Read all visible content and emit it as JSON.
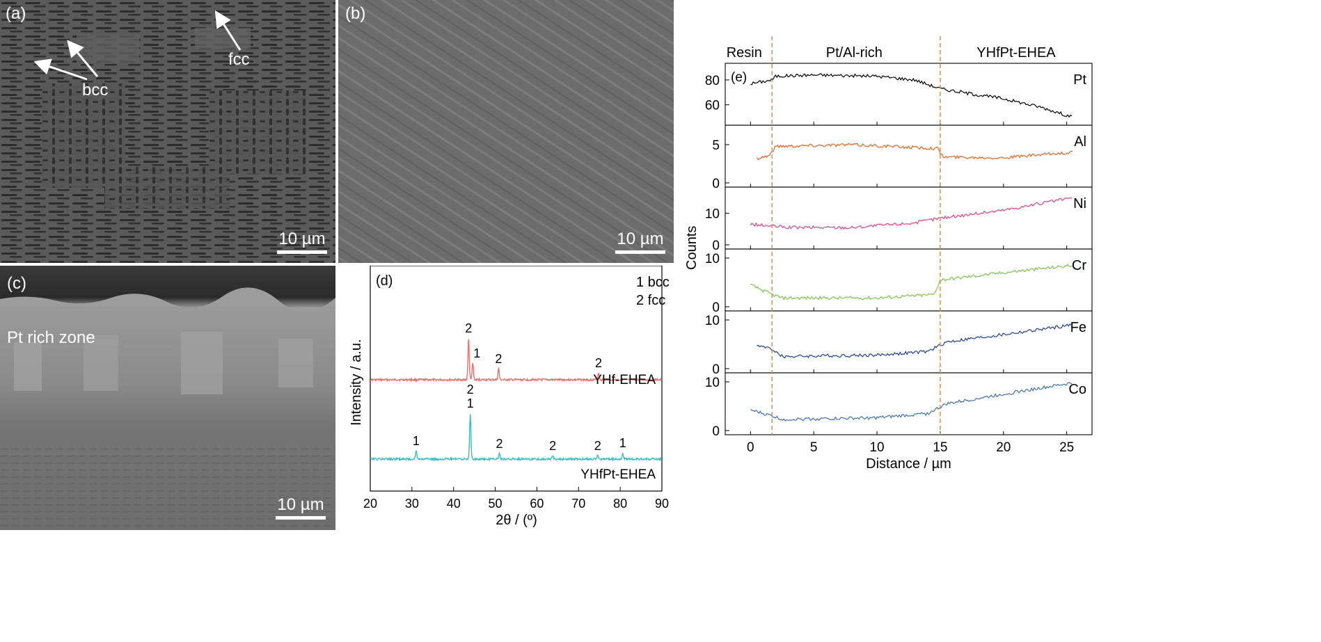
{
  "panel_a": {
    "label": "(a)",
    "annotations": [
      "bcc",
      "fcc"
    ],
    "scale": "10 µm"
  },
  "panel_b": {
    "label": "(b)",
    "scale": "10 µm"
  },
  "panel_c": {
    "label": "(c)",
    "annotation": "Pt rich zone",
    "scale": "10 µm"
  },
  "chart_data": [
    {
      "type": "line",
      "panel_label": "(d)",
      "legend_text": [
        "1 bcc",
        "2 fcc"
      ],
      "xlabel": "2θ / (º)",
      "ylabel": "Intensity / a.u.",
      "xlim": [
        20,
        90
      ],
      "xticks": [
        20,
        30,
        40,
        50,
        60,
        70,
        80,
        90
      ],
      "series": [
        {
          "name": "YHf-EHEA",
          "color": "#e8706a",
          "peaks": [
            {
              "x": 43.6,
              "label": "2",
              "h": 60
            },
            {
              "x": 44.6,
              "label": "1",
              "h": 24
            },
            {
              "x": 50.8,
              "label": "2",
              "h": 16
            },
            {
              "x": 74.8,
              "label": "2",
              "h": 10
            }
          ]
        },
        {
          "name": "YHfPt-EHEA",
          "color": "#3bbcc4",
          "peaks": [
            {
              "x": 31.0,
              "label": "1",
              "h": 12
            },
            {
              "x": 44.0,
              "label": "2\n1",
              "h": 66
            },
            {
              "x": 51.0,
              "label": "2",
              "h": 8
            },
            {
              "x": 63.8,
              "label": "2",
              "h": 5
            },
            {
              "x": 74.6,
              "label": "2",
              "h": 5
            },
            {
              "x": 80.6,
              "label": "1",
              "h": 9
            }
          ]
        }
      ]
    },
    {
      "type": "line",
      "panel_label": "(e)",
      "xlabel": "Distance / µm",
      "ylabel": "Counts",
      "xlim": [
        -2,
        27
      ],
      "xticks": [
        0,
        5,
        10,
        15,
        20,
        25
      ],
      "region_labels": [
        "Resin",
        "Pt/Al-rich",
        "YHfPt-EHEA"
      ],
      "boundaries": [
        1.7,
        15.0
      ],
      "series": [
        {
          "name": "Pt",
          "color": "#000000",
          "ylim": [
            47,
            90
          ],
          "yticks": [
            60,
            80
          ],
          "profile": [
            [
              0.0,
              77
            ],
            [
              1.7,
              80
            ],
            [
              2.0,
              83
            ],
            [
              5,
              84
            ],
            [
              10,
              83
            ],
            [
              13,
              80
            ],
            [
              15,
              73
            ],
            [
              18,
              68
            ],
            [
              20,
              65
            ],
            [
              23,
              58
            ],
            [
              25.5,
              50
            ]
          ]
        },
        {
          "name": "Al",
          "color": "#e8641e",
          "ylim": [
            0,
            7
          ],
          "yticks": [
            0,
            5
          ],
          "profile": [
            [
              0.5,
              3.2
            ],
            [
              1.5,
              3.6
            ],
            [
              2.0,
              4.8
            ],
            [
              8,
              5.0
            ],
            [
              14.8,
              4.5
            ],
            [
              15.2,
              3.4
            ],
            [
              20,
              3.3
            ],
            [
              25.5,
              4.0
            ]
          ]
        },
        {
          "name": "Ni",
          "color": "#e0408a",
          "ylim": [
            0,
            17
          ],
          "yticks": [
            0,
            10
          ],
          "profile": [
            [
              0.0,
              6.5
            ],
            [
              3,
              5.5
            ],
            [
              8,
              5.5
            ],
            [
              13,
              7
            ],
            [
              15,
              8.5
            ],
            [
              20,
              11
            ],
            [
              25.5,
              15
            ]
          ]
        },
        {
          "name": "Cr",
          "color": "#7cc44a",
          "ylim": [
            0,
            11
          ],
          "yticks": [
            0,
            10
          ],
          "profile": [
            [
              0.0,
              4.5
            ],
            [
              1.7,
              2.5
            ],
            [
              2.5,
              1.8
            ],
            [
              10,
              1.8
            ],
            [
              14.5,
              2.5
            ],
            [
              15.0,
              5.5
            ],
            [
              20,
              7
            ],
            [
              25.5,
              8.5
            ]
          ]
        },
        {
          "name": "Fe",
          "color": "#1f3f95",
          "ylim": [
            0,
            11
          ],
          "yticks": [
            0,
            10
          ],
          "profile": [
            [
              0.5,
              4.8
            ],
            [
              1.7,
              4.0
            ],
            [
              2.5,
              2.5
            ],
            [
              10,
              2.8
            ],
            [
              14,
              3.5
            ],
            [
              15.5,
              5.5
            ],
            [
              20,
              7
            ],
            [
              25.5,
              9
            ]
          ]
        },
        {
          "name": "Co",
          "color": "#3f6fb5",
          "ylim": [
            0,
            11
          ],
          "yticks": [
            0,
            10
          ],
          "profile": [
            [
              0.0,
              4.2
            ],
            [
              1.7,
              3.0
            ],
            [
              2.5,
              2.3
            ],
            [
              10,
              2.6
            ],
            [
              14,
              3.5
            ],
            [
              15.5,
              5.5
            ],
            [
              20,
              7.5
            ],
            [
              25.5,
              9.8
            ]
          ]
        }
      ]
    }
  ]
}
